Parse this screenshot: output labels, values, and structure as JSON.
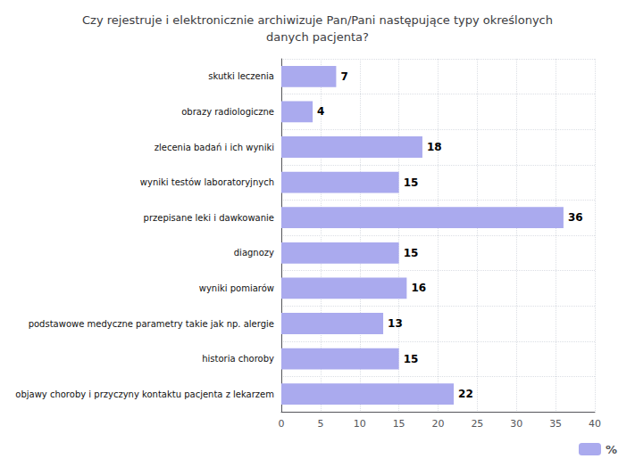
{
  "chart_data": {
    "type": "bar",
    "orientation": "horizontal",
    "title": "Czy rejestruje i elektronicznie archiwizuje Pan/Pani następujące typy określonych\ndanych pacjenta?",
    "categories": [
      "objawy choroby i przyczyny kontaktu pacjenta z lekarzem",
      "historia choroby",
      "podstawowe medyczne parametry takie jak np. alergie",
      "wyniki pomiarów",
      "diagnozy",
      "przepisane leki i dawkowanie",
      "wyniki testów laboratoryjnych",
      "zlecenia badań i ich wyniki",
      "obrazy radiologiczne",
      "skutki leczenia"
    ],
    "series": [
      {
        "name": "%",
        "color": "#aaaaee",
        "values": [
          22,
          15,
          13,
          16,
          15,
          36,
          15,
          18,
          4,
          7
        ]
      }
    ],
    "xlim": [
      0,
      40
    ],
    "xticks": [
      0,
      5,
      10,
      15,
      20,
      25,
      30,
      35,
      40
    ],
    "grid": true,
    "data_labels": true,
    "legend": "lower right"
  }
}
